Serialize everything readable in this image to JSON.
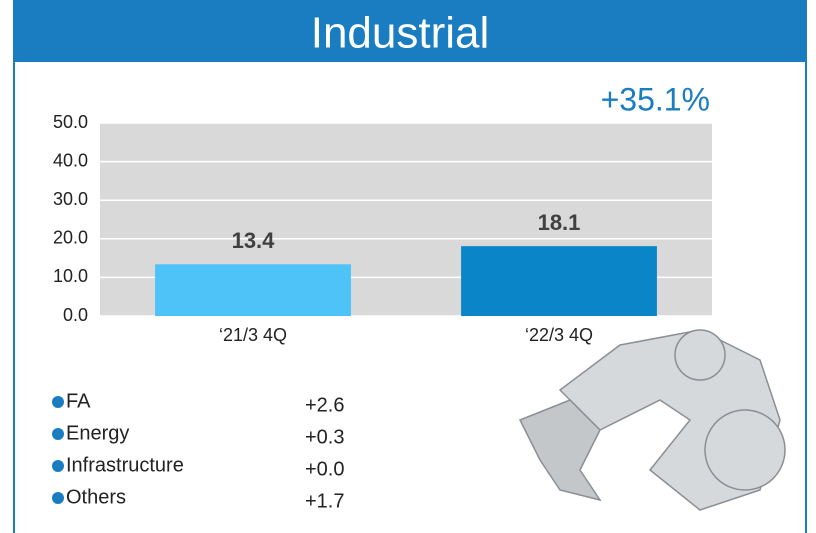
{
  "chart_data": {
    "type": "bar",
    "title": "Industrial",
    "annotation": "+35.1%",
    "categories": [
      "‘21/3 4Q",
      "‘22/3 4Q"
    ],
    "values": [
      13.4,
      18.1
    ],
    "colors": [
      "#4dc3f7",
      "#0a86c8"
    ],
    "ylim": [
      0,
      50
    ],
    "yticks": [
      {
        "value": 0,
        "label": "0.0"
      },
      {
        "value": 10,
        "label": "10.0"
      },
      {
        "value": 20,
        "label": "20.0"
      },
      {
        "value": 30,
        "label": "30.0"
      },
      {
        "value": 40,
        "label": "40.0"
      },
      {
        "value": 50,
        "label": "50.0"
      }
    ],
    "grid": true,
    "breakdown": [
      {
        "label": "FA",
        "change": "+2.6"
      },
      {
        "label": "Energy",
        "change": "+0.3"
      },
      {
        "label": "Infrastructure",
        "change": "+0.0"
      },
      {
        "label": "Others",
        "change": "+1.7"
      }
    ]
  }
}
